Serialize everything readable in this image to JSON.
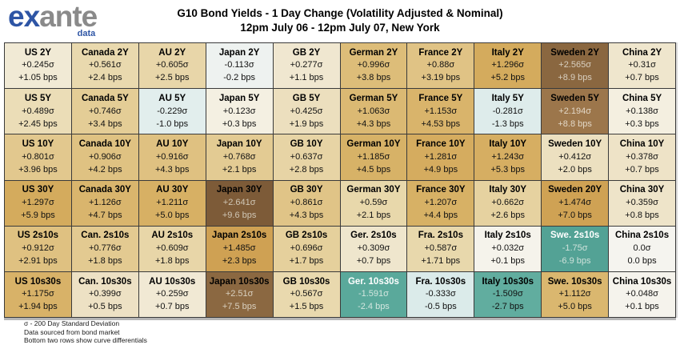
{
  "logo": {
    "ex": "ex",
    "ante": "ante",
    "data": "data"
  },
  "title": {
    "line1": "G10 Bond Yields - 1 Day Change (Volatility Adjusted & Nominal)",
    "line2": "12pm July 06 - 12pm July 07, New York"
  },
  "footnotes": [
    "σ - 200 Day Standard Deviation",
    "Data sourced from bond market",
    "Bottom two rows show curve differentials"
  ],
  "colors": {
    "logo_blue": "#2e55a5",
    "logo_gray": "#8a8a8a",
    "grid_border": "#3a3a3a",
    "bottom_edge": "#b5b5b5",
    "positive_extreme_brown": "#7d5b38",
    "negative_extreme_teal": "#53a295",
    "light_value_text_warm": "#d8cfc0",
    "light_value_text_cool": "#d5e7e0"
  },
  "chart_data": {
    "type": "heatmap",
    "title": "G10 Bond Yields - 1 Day Change (Volatility Adjusted & Nominal)",
    "subtitle": "12pm July 06 - 12pm July 07, New York",
    "columns": [
      "US",
      "Canada",
      "AU",
      "Japan",
      "GB",
      "German",
      "France",
      "Italy",
      "Sweden",
      "China"
    ],
    "rows": [
      "2Y",
      "5Y",
      "10Y",
      "30Y",
      "2s10s",
      "10s30s"
    ],
    "unit_primary": "sigma (200 day standard deviation)",
    "unit_secondary": "bps",
    "legend_position": "none",
    "cells": [
      [
        {
          "label": "US 2Y",
          "sigma": "+0.245σ",
          "bps": "+1.05 bps",
          "bg": "#f1ead5"
        },
        {
          "label": "Canada 2Y",
          "sigma": "+0.561σ",
          "bps": "+2.4 bps",
          "bg": "#e9d9ae"
        },
        {
          "label": "AU 2Y",
          "sigma": "+0.605σ",
          "bps": "+2.5 bps",
          "bg": "#e8d6a9"
        },
        {
          "label": "Japan 2Y",
          "sigma": "-0.113σ",
          "bps": "-0.2 bps",
          "bg": "#eef2f0"
        },
        {
          "label": "GB 2Y",
          "sigma": "+0.277σ",
          "bps": "+1.1 bps",
          "bg": "#f0e7d0"
        },
        {
          "label": "German 2Y",
          "sigma": "+0.996σ",
          "bps": "+3.8 bps",
          "bg": "#ddbd79"
        },
        {
          "label": "France 2Y",
          "sigma": "+0.88σ",
          "bps": "+3.19 bps",
          "bg": "#e0c385"
        },
        {
          "label": "Italy 2Y",
          "sigma": "+1.296σ",
          "bps": "+5.2 bps",
          "bg": "#d4ab5d"
        },
        {
          "label": "Sweden 2Y",
          "sigma": "+2.565σ",
          "bps": "+8.9 bps",
          "bg": "#8a6740",
          "vc": "#d8cfc0"
        },
        {
          "label": "China 2Y",
          "sigma": "+0.31σ",
          "bps": "+0.7 bps",
          "bg": "#efe6cd"
        }
      ],
      [
        {
          "label": "US 5Y",
          "sigma": "+0.489σ",
          "bps": "+2.45 bps",
          "bg": "#ebddb7"
        },
        {
          "label": "Canada 5Y",
          "sigma": "+0.746σ",
          "bps": "+3.4 bps",
          "bg": "#e4cd96"
        },
        {
          "label": "AU 5Y",
          "sigma": "-0.229σ",
          "bps": "-1.0 bps",
          "bg": "#e2eeed"
        },
        {
          "label": "Japan 5Y",
          "sigma": "+0.123σ",
          "bps": "+0.3 bps",
          "bg": "#f4f0e2"
        },
        {
          "label": "GB 5Y",
          "sigma": "+0.425σ",
          "bps": "+1.9 bps",
          "bg": "#ecdfbe"
        },
        {
          "label": "German 5Y",
          "sigma": "+1.063σ",
          "bps": "+4.3 bps",
          "bg": "#dbb973"
        },
        {
          "label": "France 5Y",
          "sigma": "+1.153σ",
          "bps": "+4.53 bps",
          "bg": "#d9b46b"
        },
        {
          "label": "Italy 5Y",
          "sigma": "-0.281σ",
          "bps": "-1.3 bps",
          "bg": "#deeceb"
        },
        {
          "label": "Sweden 5Y",
          "sigma": "+2.194σ",
          "bps": "+8.8 bps",
          "bg": "#9c764b",
          "vc": "#e2d7c6"
        },
        {
          "label": "China 5Y",
          "sigma": "+0.138σ",
          "bps": "+0.3 bps",
          "bg": "#f4efe0"
        }
      ],
      [
        {
          "label": "US 10Y",
          "sigma": "+0.801σ",
          "bps": "+3.96 bps",
          "bg": "#e2c88e"
        },
        {
          "label": "Canada 10Y",
          "sigma": "+0.906σ",
          "bps": "+4.2 bps",
          "bg": "#dfc282"
        },
        {
          "label": "AU 10Y",
          "sigma": "+0.916σ",
          "bps": "+4.3 bps",
          "bg": "#dfc181"
        },
        {
          "label": "Japan 10Y",
          "sigma": "+0.768σ",
          "bps": "+2.1 bps",
          "bg": "#e3cb93"
        },
        {
          "label": "GB 10Y",
          "sigma": "+0.637σ",
          "bps": "+2.8 bps",
          "bg": "#e7d4a5"
        },
        {
          "label": "German 10Y",
          "sigma": "+1.185σ",
          "bps": "+4.5 bps",
          "bg": "#d7b267"
        },
        {
          "label": "France 10Y",
          "sigma": "+1.281σ",
          "bps": "+4.9 bps",
          "bg": "#d5ac5f"
        },
        {
          "label": "Italy 10Y",
          "sigma": "+1.243σ",
          "bps": "+5.3 bps",
          "bg": "#d6ae62"
        },
        {
          "label": "Sweden 10Y",
          "sigma": "+0.412σ",
          "bps": "+2.0 bps",
          "bg": "#ece0c0"
        },
        {
          "label": "China 10Y",
          "sigma": "+0.378σ",
          "bps": "+0.7 bps",
          "bg": "#eee3c7"
        }
      ],
      [
        {
          "label": "US 30Y",
          "sigma": "+1.297σ",
          "bps": "+5.9 bps",
          "bg": "#d4ab5d"
        },
        {
          "label": "Canada 30Y",
          "sigma": "+1.126σ",
          "bps": "+4.7 bps",
          "bg": "#d9b56d"
        },
        {
          "label": "AU 30Y",
          "sigma": "+1.211σ",
          "bps": "+5.0 bps",
          "bg": "#d7b064"
        },
        {
          "label": "Japan 30Y",
          "sigma": "+2.641σ",
          "bps": "+9.6 bps",
          "bg": "#7d5b38",
          "vc": "#cfc6b5"
        },
        {
          "label": "GB 30Y",
          "sigma": "+0.861σ",
          "bps": "+4.3 bps",
          "bg": "#e0c487"
        },
        {
          "label": "German 30Y",
          "sigma": "+0.59σ",
          "bps": "+2.1 bps",
          "bg": "#e8d8ab"
        },
        {
          "label": "France 30Y",
          "sigma": "+1.207σ",
          "bps": "+4.4 bps",
          "bg": "#d7b165"
        },
        {
          "label": "Italy 30Y",
          "sigma": "+0.662σ",
          "bps": "+2.6 bps",
          "bg": "#e6d2a0"
        },
        {
          "label": "Sweden 20Y",
          "sigma": "+1.474σ",
          "bps": "+7.0 bps",
          "bg": "#cfa254"
        },
        {
          "label": "China 30Y",
          "sigma": "+0.359σ",
          "bps": "+0.8 bps",
          "bg": "#eee4c9"
        }
      ],
      [
        {
          "label": "US 2s10s",
          "sigma": "+0.912σ",
          "bps": "+2.91 bps",
          "bg": "#dfc181"
        },
        {
          "label": "Can. 2s10s",
          "sigma": "+0.776σ",
          "bps": "+1.8 bps",
          "bg": "#e3ca91"
        },
        {
          "label": "AU 2s10s",
          "sigma": "+0.609σ",
          "bps": "+1.8 bps",
          "bg": "#e8d6a8"
        },
        {
          "label": "Japan 2s10s",
          "sigma": "+1.485σ",
          "bps": "+2.3 bps",
          "bg": "#cfa153"
        },
        {
          "label": "GB 2s10s",
          "sigma": "+0.696σ",
          "bps": "+1.7 bps",
          "bg": "#e5d09c"
        },
        {
          "label": "Ger. 2s10s",
          "sigma": "+0.309σ",
          "bps": "+0.7 bps",
          "bg": "#efe6cd"
        },
        {
          "label": "Fra. 2s10s",
          "sigma": "+0.587σ",
          "bps": "+1.71 bps",
          "bg": "#e8d8ac"
        },
        {
          "label": "Italy 2s10s",
          "sigma": "+0.032σ",
          "bps": "+0.1 bps",
          "bg": "#f5f3eb"
        },
        {
          "label": "Swe. 2s10s",
          "sigma": "-1.75σ",
          "bps": "-6.9 bps",
          "bg": "#53a295",
          "hc": "#ffffff",
          "vc": "#cfe2db"
        },
        {
          "label": "China 2s10s",
          "sigma": "0.0σ",
          "bps": "0.0 bps",
          "bg": "#f5f4ef"
        }
      ],
      [
        {
          "label": "US 10s30s",
          "sigma": "+1.175σ",
          "bps": "+1.94 bps",
          "bg": "#d8b268"
        },
        {
          "label": "Can. 10s30s",
          "sigma": "+0.399σ",
          "bps": "+0.5 bps",
          "bg": "#ede1c4"
        },
        {
          "label": "AU 10s30s",
          "sigma": "+0.259σ",
          "bps": "+0.7 bps",
          "bg": "#f1e9d4"
        },
        {
          "label": "Japan 10s30s",
          "sigma": "+2.51σ",
          "bps": "+7.5 bps",
          "bg": "#8b6841",
          "vc": "#d9d0bf"
        },
        {
          "label": "GB 10s30s",
          "sigma": "+0.567σ",
          "bps": "+1.5 bps",
          "bg": "#e9d9ae"
        },
        {
          "label": "Ger. 10s30s",
          "sigma": "-1.591σ",
          "bps": "-2.4 bps",
          "bg": "#5aa99b",
          "hc": "#ffffff",
          "vc": "#d3e6df"
        },
        {
          "label": "Fra. 10s30s",
          "sigma": "-0.333σ",
          "bps": "-0.5 bps",
          "bg": "#dbebea"
        },
        {
          "label": "Italy 10s30s",
          "sigma": "-1.509σ",
          "bps": "-2.7 bps",
          "bg": "#61ad9f"
        },
        {
          "label": "Swe. 10s30s",
          "sigma": "+1.112σ",
          "bps": "+5.0 bps",
          "bg": "#dab76f"
        },
        {
          "label": "China 10s30s",
          "sigma": "+0.048σ",
          "bps": "+0.1 bps",
          "bg": "#f5f3ec"
        }
      ]
    ]
  }
}
